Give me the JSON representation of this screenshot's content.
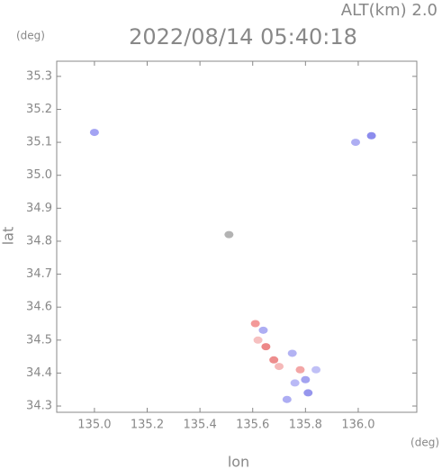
{
  "chart_data": {
    "type": "scatter",
    "title": "2022/08/14 05:40:18",
    "subtitle": "ALT(km) 2.0",
    "y_unit": "(deg)",
    "x_unit": "(deg)",
    "xlabel": "lon",
    "ylabel": "lat",
    "x": [
      135.0,
      136.05,
      135.99,
      135.51,
      135.61,
      135.62,
      135.65,
      135.64,
      135.68,
      135.7,
      135.75,
      135.78,
      135.8,
      135.76,
      135.81,
      135.73,
      135.84
    ],
    "values": [
      35.13,
      35.12,
      35.1,
      34.82,
      34.55,
      34.5,
      34.48,
      34.53,
      34.44,
      34.42,
      34.46,
      34.41,
      34.38,
      34.37,
      34.34,
      34.32,
      34.41
    ],
    "colors": [
      "#8c8cf0",
      "#6f6fe8",
      "#9a9af0",
      "#a0a0a0",
      "#f08080",
      "#f4b0b0",
      "#e86a6a",
      "#9a9af0",
      "#e87070",
      "#f2a8a8",
      "#a0a0f0",
      "#f09090",
      "#8c8cec",
      "#a8a8f4",
      "#7c7ce8",
      "#9898f0",
      "#b0b0f4"
    ],
    "xlim": [
      134.857,
      136.222
    ],
    "ylim": [
      34.281,
      35.346
    ],
    "xticks": [
      {
        "value": 135.0,
        "label": "135.0"
      },
      135.2,
      135.4,
      135.6,
      135.8,
      {
        "value": 136.0,
        "label": "136.0"
      }
    ],
    "yticks": [
      34.3,
      34.4,
      34.5,
      34.6,
      34.7,
      34.8,
      34.9,
      {
        "value": 35.0,
        "label": "35.0"
      },
      35.1,
      35.2,
      35.3
    ]
  }
}
